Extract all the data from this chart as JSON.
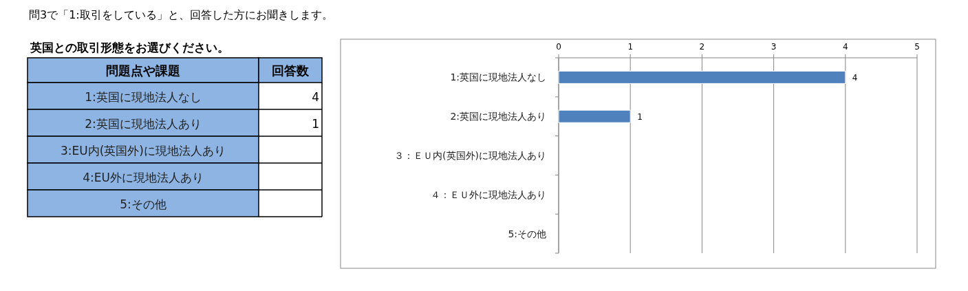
{
  "chart_data": [
    {
      "type": "other",
      "title": "問3で「1:取引をしている」と、回答した方にお聞きします。",
      "subtitle": "英国との取引形態をお選びください。",
      "annotations": [
        "問題点や課題",
        "回答数"
      ],
      "categories": [
        "1:英国に現地法人なし",
        "2:英国に現地法人あり",
        "3:EU内(英国外)に現地法人あり",
        "4:EU外に現地法人あり",
        "5:その他"
      ],
      "values": [
        4,
        1,
        null,
        null,
        null
      ],
      "color": "#8db4e2",
      "data_labels": true
    },
    {
      "type": "bar",
      "orientation": "horizontal",
      "categories": [
        "1:英国に現地法人なし",
        "2:英国に現地法人あり",
        "３：ＥＵ内(英国外)に現地法人あり",
        "４：ＥＵ外に現地法人あり",
        "5:その他"
      ],
      "values": [
        4,
        1,
        null,
        null,
        null
      ],
      "color": "#4f81bd",
      "xlim": [
        0,
        5
      ],
      "xticks": [
        0,
        1,
        2,
        3,
        4,
        5
      ],
      "grid": "x",
      "data_labels": true
    }
  ]
}
